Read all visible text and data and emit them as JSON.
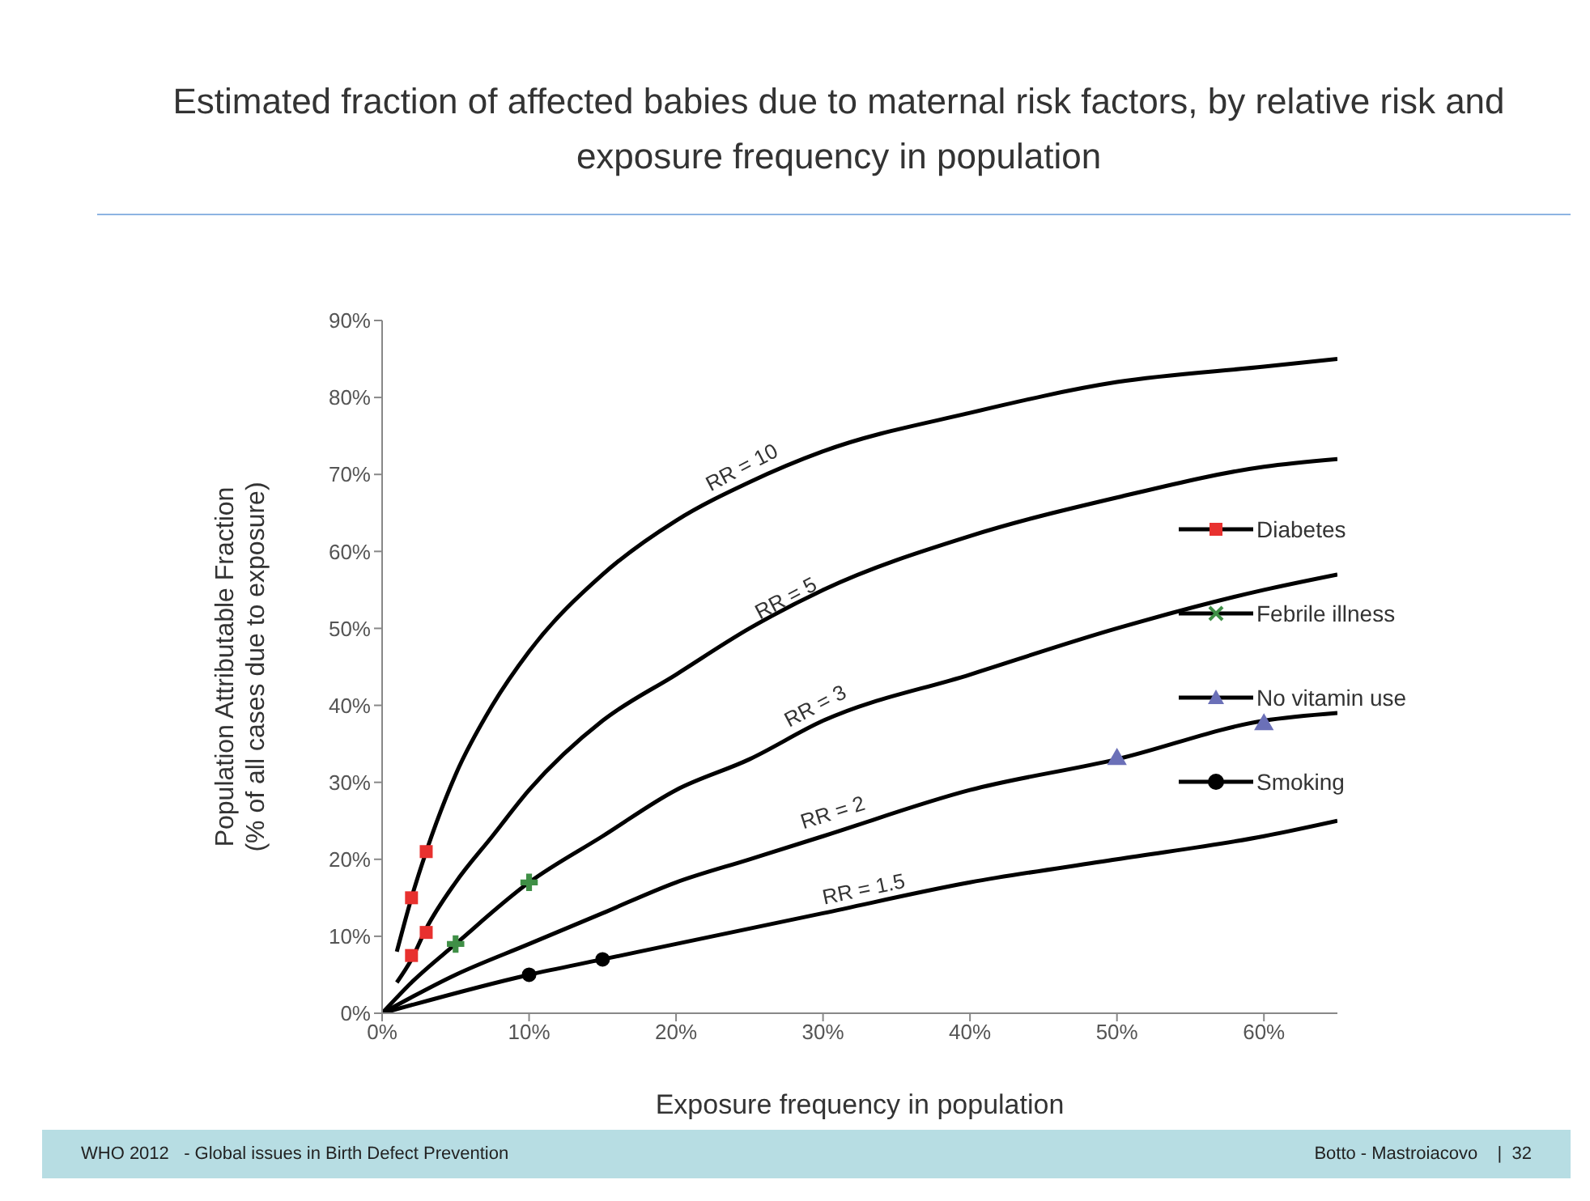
{
  "chart_data": {
    "type": "line",
    "title": "Estimated fraction of affected babies due to maternal risk factors, by relative risk and exposure frequency in population",
    "xlabel": "Exposure frequency in population",
    "ylabel": "Population Attributable Fraction\n(% of all cases due to exposure)",
    "xlim": [
      0,
      65
    ],
    "xticks": [
      {
        "value": 0,
        "label": "0%"
      },
      {
        "value": 10,
        "label": "10%"
      },
      {
        "value": 20,
        "label": "20%"
      },
      {
        "value": 30,
        "label": "30%"
      },
      {
        "value": 40,
        "label": "40%"
      },
      {
        "value": 50,
        "label": "50%"
      },
      {
        "value": 60,
        "label": "60%"
      }
    ],
    "ylim": [
      0,
      90
    ],
    "yticks": [
      {
        "value": 0,
        "label": "0%"
      },
      {
        "value": 10,
        "label": "10%"
      },
      {
        "value": 20,
        "label": "20%"
      },
      {
        "value": 30,
        "label": "30%"
      },
      {
        "value": 40,
        "label": "40%"
      },
      {
        "value": 50,
        "label": "50%"
      },
      {
        "value": 60,
        "label": "60%"
      },
      {
        "value": 70,
        "label": "70%"
      },
      {
        "value": 80,
        "label": "80%"
      },
      {
        "value": 90,
        "label": "90%"
      }
    ],
    "grid": false,
    "legend": "right",
    "series": [
      {
        "color": "#000000",
        "marker": "none",
        "x": [
          1,
          2,
          3,
          5,
          7.5,
          10,
          15,
          20,
          25,
          30,
          40,
          50,
          60,
          65
        ],
        "values": [
          8,
          15,
          21,
          31,
          40,
          47,
          57,
          64,
          69,
          73,
          78,
          82,
          84,
          85
        ]
      },
      {
        "color": "#000000",
        "marker": "none",
        "x": [
          1,
          2,
          3,
          5,
          7.5,
          10,
          15,
          20,
          25,
          30,
          40,
          50,
          60,
          65
        ],
        "values": [
          4,
          7,
          11,
          17,
          23,
          29,
          38,
          44,
          50,
          55,
          62,
          67,
          71,
          72
        ]
      },
      {
        "color": "#000000",
        "marker": "none",
        "x": [
          0,
          2,
          5,
          10,
          15,
          20,
          25,
          30,
          40,
          50,
          60,
          65
        ],
        "values": [
          0,
          4,
          9,
          17,
          23,
          29,
          33,
          38,
          44,
          50,
          55,
          57
        ]
      },
      {
        "color": "#000000",
        "marker": "none",
        "x": [
          0,
          5,
          10,
          15,
          20,
          25,
          30,
          40,
          50,
          60,
          65
        ],
        "values": [
          0,
          5,
          9,
          13,
          17,
          20,
          23,
          29,
          33,
          38,
          39
        ]
      },
      {
        "color": "#000000",
        "marker": "none",
        "x": [
          0,
          10,
          15,
          20,
          30,
          40,
          50,
          60,
          65
        ],
        "values": [
          0,
          5,
          7,
          9,
          13,
          17,
          20,
          23,
          25
        ]
      },
      {
        "type": "scatter",
        "name": "Diabetes",
        "color": "#e8312f",
        "marker": "square",
        "x": [
          2,
          2,
          3,
          3
        ],
        "values": [
          15,
          7.5,
          21,
          10.5
        ]
      },
      {
        "type": "scatter",
        "name": "Febrile illness",
        "color": "#3f8f46",
        "marker": "cross",
        "x": [
          5,
          10
        ],
        "values": [
          9,
          17
        ]
      },
      {
        "type": "scatter",
        "name": "No vitamin use",
        "color": "#6b70b8",
        "marker": "triangle",
        "x": [
          50,
          60
        ],
        "values": [
          33,
          37.5
        ]
      },
      {
        "type": "scatter",
        "name": "Smoking",
        "color": "#000000",
        "marker": "circle",
        "x": [
          10,
          15
        ],
        "values": [
          5,
          7
        ]
      }
    ],
    "annotations": [
      {
        "text": "RR = 10",
        "x": 25,
        "y": 69
      },
      {
        "text": "RR = 5",
        "x": 28,
        "y": 52
      },
      {
        "text": "RR = 3",
        "x": 30,
        "y": 38
      },
      {
        "text": "RR = 2",
        "x": 31,
        "y": 24
      },
      {
        "text": "RR = 1.5",
        "x": 33,
        "y": 14
      },
      "WHO 2012   - Global issues in Birth Defect Prevention",
      "Botto - Mastroiacovo    |  32"
    ]
  }
}
